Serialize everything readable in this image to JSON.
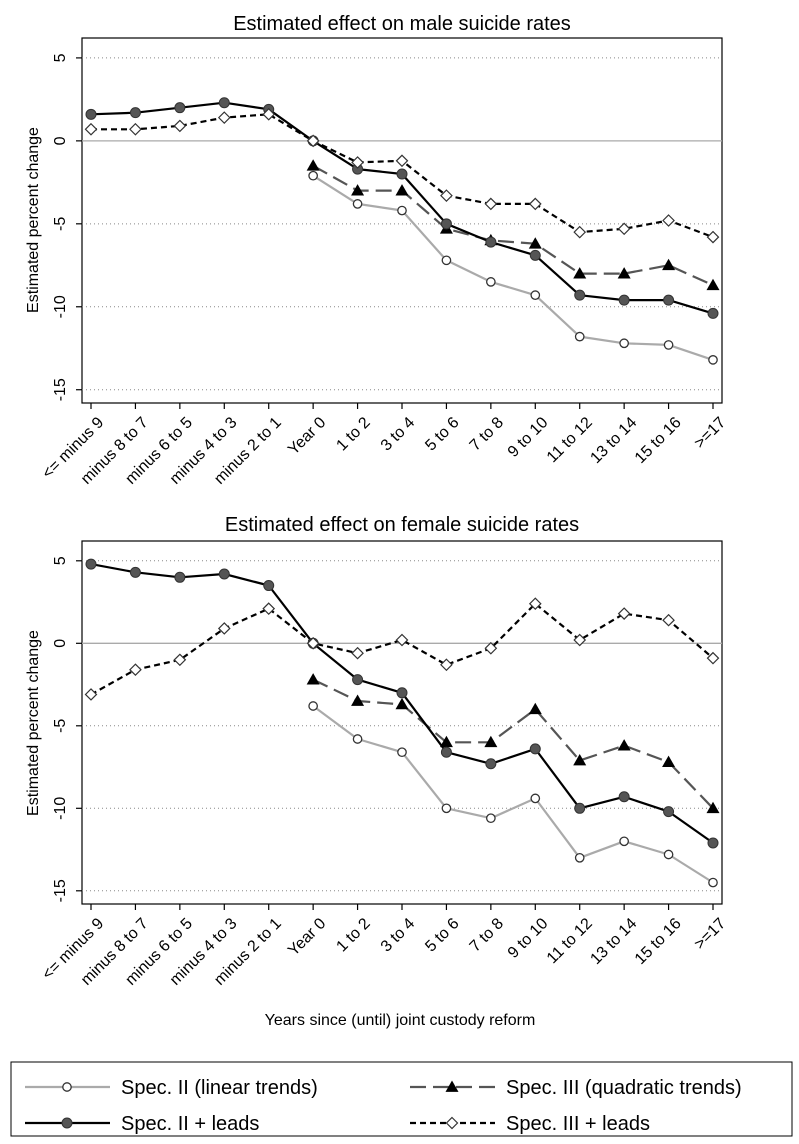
{
  "chart_data": [
    {
      "type": "line",
      "title": "Estimated effect on male suicide rates",
      "ylabel": "Estimated percent change",
      "xlabel": "",
      "ylim": [
        -15.8,
        6.2
      ],
      "yticks": [
        5,
        0,
        -5,
        -10,
        -15
      ],
      "categories": [
        "<= minus 9",
        "minus 8 to 7",
        "minus 6 to 5",
        "minus 4 to 3",
        "minus 2 to 1",
        "Year 0",
        "1 to 2",
        "3 to 4",
        "5 to 6",
        "7 to 8",
        "9 to 10",
        "11 to 12",
        "13 to 14",
        "15 to 16",
        ">=17"
      ],
      "grid": "horizontal dotted",
      "series": [
        {
          "name": "Spec. II (linear trends)",
          "color": "#aaaaaa",
          "dash": "solid",
          "marker": "circle-hollow",
          "values": [
            null,
            null,
            null,
            null,
            null,
            -2.1,
            -3.8,
            -4.2,
            -7.2,
            -8.5,
            -9.3,
            -11.8,
            -12.2,
            -12.3,
            -13.2
          ]
        },
        {
          "name": "Spec. III (quadratic trends)",
          "color": "#555555",
          "dash": "longdash",
          "marker": "triangle",
          "values": [
            null,
            null,
            null,
            null,
            null,
            -1.5,
            -3.0,
            -3.0,
            -5.3,
            -6.0,
            -6.2,
            -8.0,
            -8.0,
            -7.5,
            -8.7
          ]
        },
        {
          "name": "Spec. II + leads",
          "color": "#000000",
          "dash": "solid",
          "marker": "circle-filled",
          "values": [
            1.6,
            1.7,
            2.0,
            2.3,
            1.9,
            0.0,
            -1.7,
            -2.0,
            -5.0,
            -6.1,
            -6.9,
            -9.3,
            -9.6,
            -9.6,
            -10.4
          ]
        },
        {
          "name": "Spec. III + leads",
          "color": "#000000",
          "dash": "shortdash",
          "marker": "diamond-hollow",
          "values": [
            0.7,
            0.7,
            0.9,
            1.4,
            1.6,
            0.0,
            -1.3,
            -1.2,
            -3.3,
            -3.8,
            -3.8,
            -5.5,
            -5.3,
            -4.8,
            -5.8
          ]
        }
      ]
    },
    {
      "type": "line",
      "title": "Estimated effect on female suicide rates",
      "ylabel": "Estimated percent change",
      "xlabel": "Years since (until) joint custody reform",
      "ylim": [
        -15.8,
        6.2
      ],
      "yticks": [
        5,
        0,
        -5,
        -10,
        -15
      ],
      "categories": [
        "<= minus 9",
        "minus 8 to 7",
        "minus 6 to 5",
        "minus 4 to 3",
        "minus 2 to 1",
        "Year 0",
        "1 to 2",
        "3 to 4",
        "5 to 6",
        "7 to 8",
        "9 to 10",
        "11 to 12",
        "13 to 14",
        "15 to 16",
        ">=17"
      ],
      "grid": "horizontal dotted",
      "series": [
        {
          "name": "Spec. II (linear trends)",
          "color": "#aaaaaa",
          "dash": "solid",
          "marker": "circle-hollow",
          "values": [
            null,
            null,
            null,
            null,
            null,
            -3.8,
            -5.8,
            -6.6,
            -10.0,
            -10.6,
            -9.4,
            -13.0,
            -12.0,
            -12.8,
            -14.5
          ]
        },
        {
          "name": "Spec. III (quadratic trends)",
          "color": "#555555",
          "dash": "longdash",
          "marker": "triangle",
          "values": [
            null,
            null,
            null,
            null,
            null,
            -2.2,
            -3.5,
            -3.7,
            -6.0,
            -6.0,
            -4.0,
            -7.1,
            -6.2,
            -7.2,
            -10.0
          ]
        },
        {
          "name": "Spec. II + leads",
          "color": "#000000",
          "dash": "solid",
          "marker": "circle-filled",
          "values": [
            4.8,
            4.3,
            4.0,
            4.2,
            3.5,
            0.0,
            -2.2,
            -3.0,
            -6.6,
            -7.3,
            -6.4,
            -10.0,
            -9.3,
            -10.2,
            -12.1
          ]
        },
        {
          "name": "Spec. III + leads",
          "color": "#000000",
          "dash": "shortdash",
          "marker": "diamond-hollow",
          "values": [
            -3.1,
            -1.6,
            -1.0,
            0.9,
            2.1,
            0.0,
            -0.6,
            0.2,
            -1.3,
            -0.3,
            2.4,
            0.2,
            1.8,
            1.4,
            -0.9
          ]
        }
      ]
    }
  ],
  "legend": {
    "placement": "bottom",
    "items": [
      {
        "label": "Spec. II (linear trends)",
        "color": "#aaaaaa",
        "dash": "solid",
        "marker": "circle-hollow"
      },
      {
        "label": "Spec. III (quadratic trends)",
        "color": "#555555",
        "dash": "longdash",
        "marker": "triangle"
      },
      {
        "label": "Spec. II + leads",
        "color": "#000000",
        "dash": "solid",
        "marker": "circle-filled"
      },
      {
        "label": "Spec. III + leads",
        "color": "#000000",
        "dash": "shortdash",
        "marker": "diamond-hollow"
      }
    ]
  }
}
